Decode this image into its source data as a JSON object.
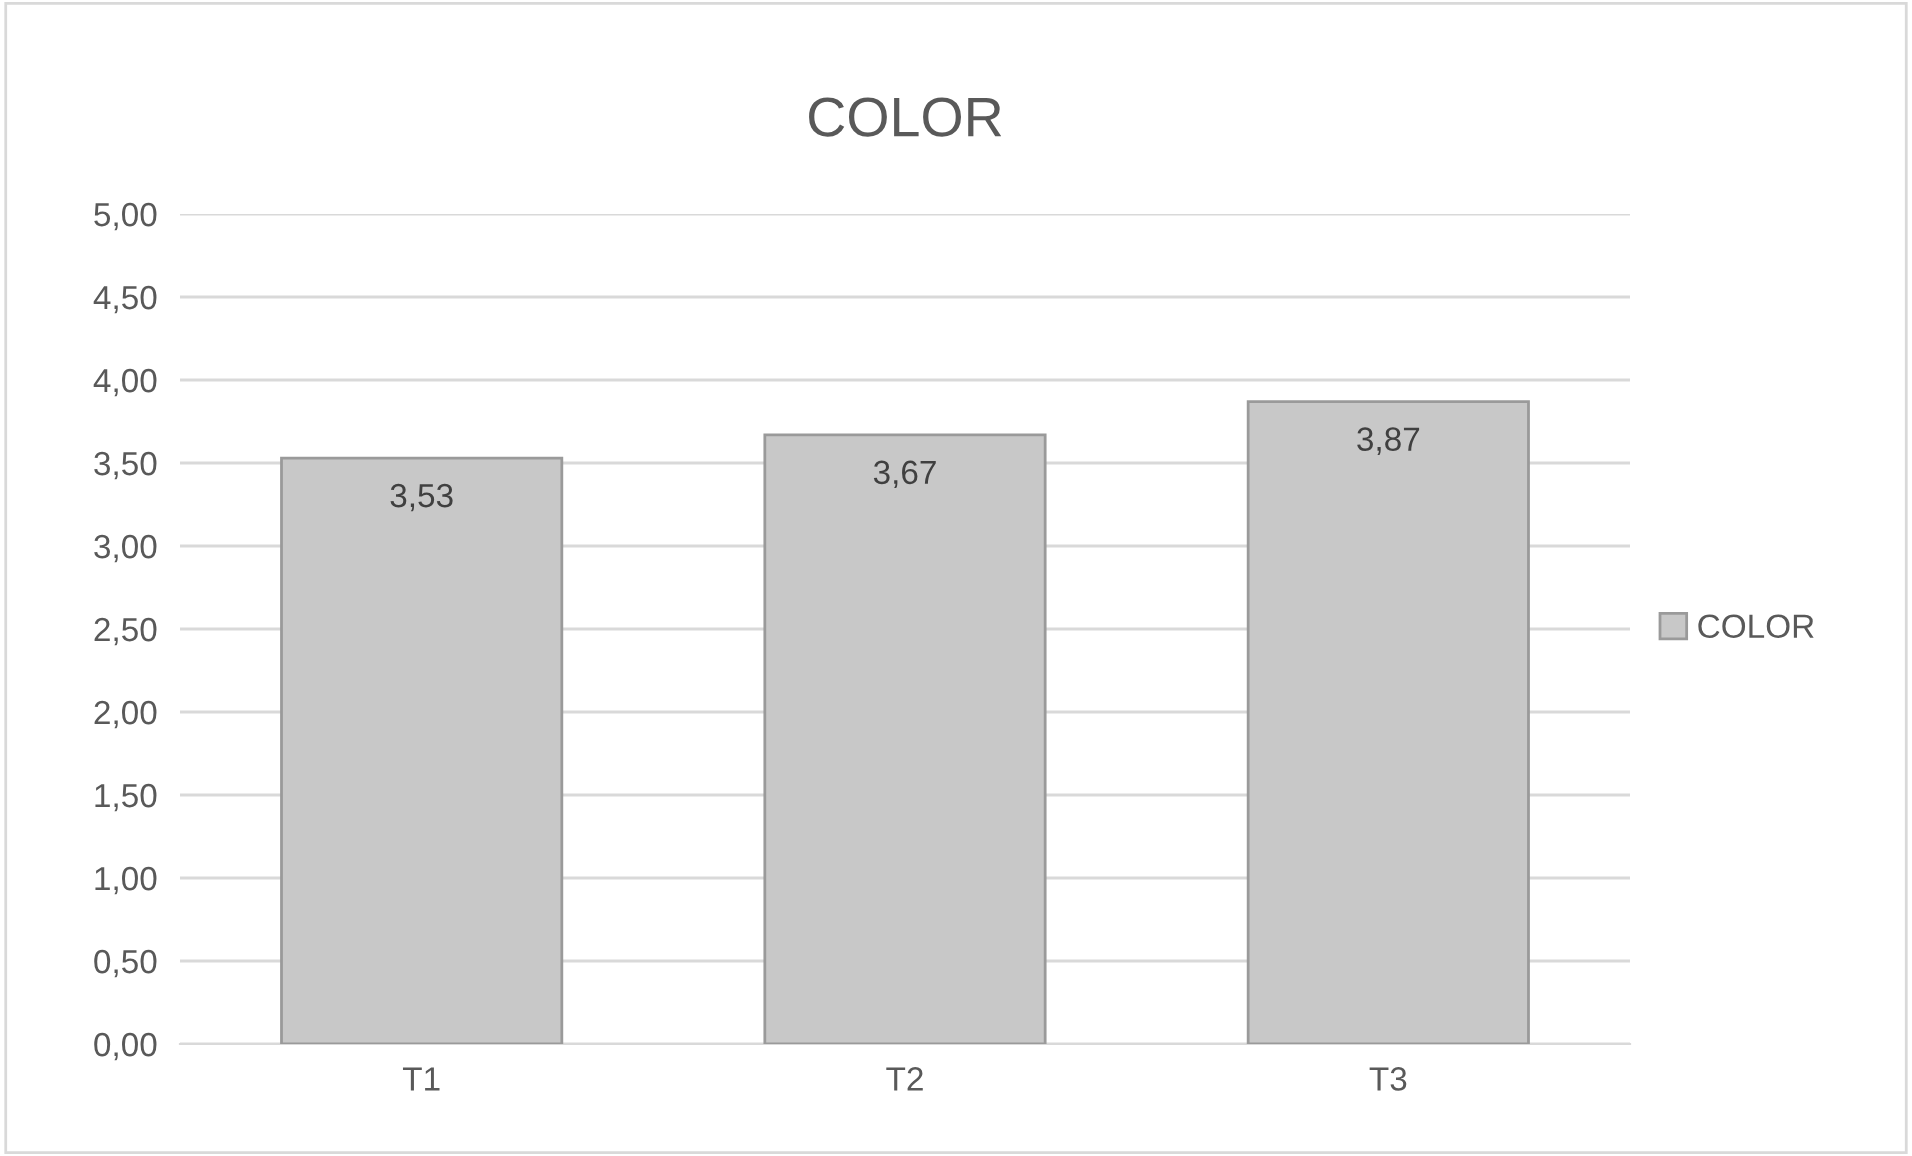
{
  "chart_data": {
    "type": "bar",
    "title": "COLOR",
    "categories": [
      "T1",
      "T2",
      "T3"
    ],
    "series": [
      {
        "name": "COLOR",
        "color": "#c8c8c8",
        "values": [
          3.53,
          3.67,
          3.87
        ],
        "value_labels": [
          "3,53",
          "3,67",
          "3,87"
        ]
      }
    ],
    "ylim": [
      0,
      5
    ],
    "yticks": [
      {
        "value": 0,
        "label": "0,00"
      },
      {
        "value": 0.5,
        "label": "0,50"
      },
      {
        "value": 1,
        "label": "1,00"
      },
      {
        "value": 1.5,
        "label": "1,50"
      },
      {
        "value": 2,
        "label": "2,00"
      },
      {
        "value": 2.5,
        "label": "2,50"
      },
      {
        "value": 3,
        "label": "3,00"
      },
      {
        "value": 3.5,
        "label": "3,50"
      },
      {
        "value": 4,
        "label": "4,00"
      },
      {
        "value": 4.5,
        "label": "4,50"
      },
      {
        "value": 5,
        "label": "5,00"
      }
    ],
    "grid": "y",
    "legend": "right"
  }
}
